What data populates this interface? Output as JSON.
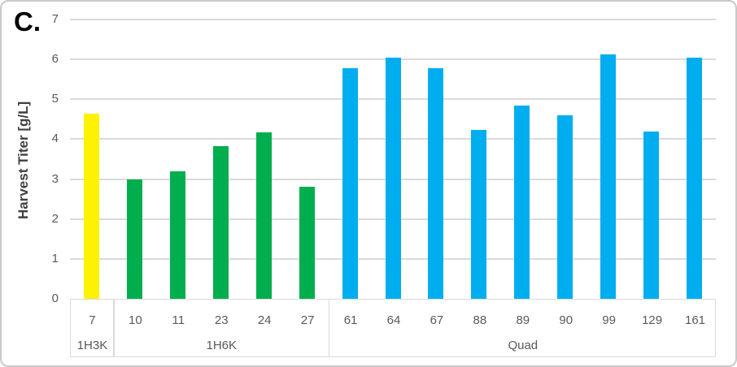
{
  "panel_label": "C.",
  "chart_data": {
    "type": "bar",
    "title": "",
    "xlabel": "",
    "ylabel": "Harvest Titer [g/L]",
    "ylim": [
      0,
      7
    ],
    "y_ticks": [
      0,
      1,
      2,
      3,
      4,
      5,
      6,
      7
    ],
    "grid": true,
    "legend": "none",
    "categories": [
      "7",
      "10",
      "11",
      "23",
      "24",
      "27",
      "61",
      "64",
      "67",
      "88",
      "89",
      "90",
      "99",
      "129",
      "161"
    ],
    "values": [
      4.65,
      3.0,
      3.2,
      3.83,
      4.18,
      2.8,
      5.78,
      6.05,
      5.78,
      4.23,
      4.85,
      4.6,
      6.13,
      4.2,
      6.05
    ],
    "groups": [
      {
        "label": "1H3K",
        "start": 0,
        "count": 1,
        "color": "#FFF200"
      },
      {
        "label": "1H6K",
        "start": 1,
        "count": 5,
        "color": "#00AE4E"
      },
      {
        "label": "Quad",
        "start": 6,
        "count": 9,
        "color": "#00AEEF"
      }
    ]
  },
  "colors": {
    "gridline": "#DADADA",
    "axis_box": "#D9D9D9",
    "tick_text": "#595959",
    "axis_title_text": "#404040",
    "panel_label_text": "#000000",
    "figure_border": "#C9C9C9",
    "background": "#FFFFFF"
  }
}
